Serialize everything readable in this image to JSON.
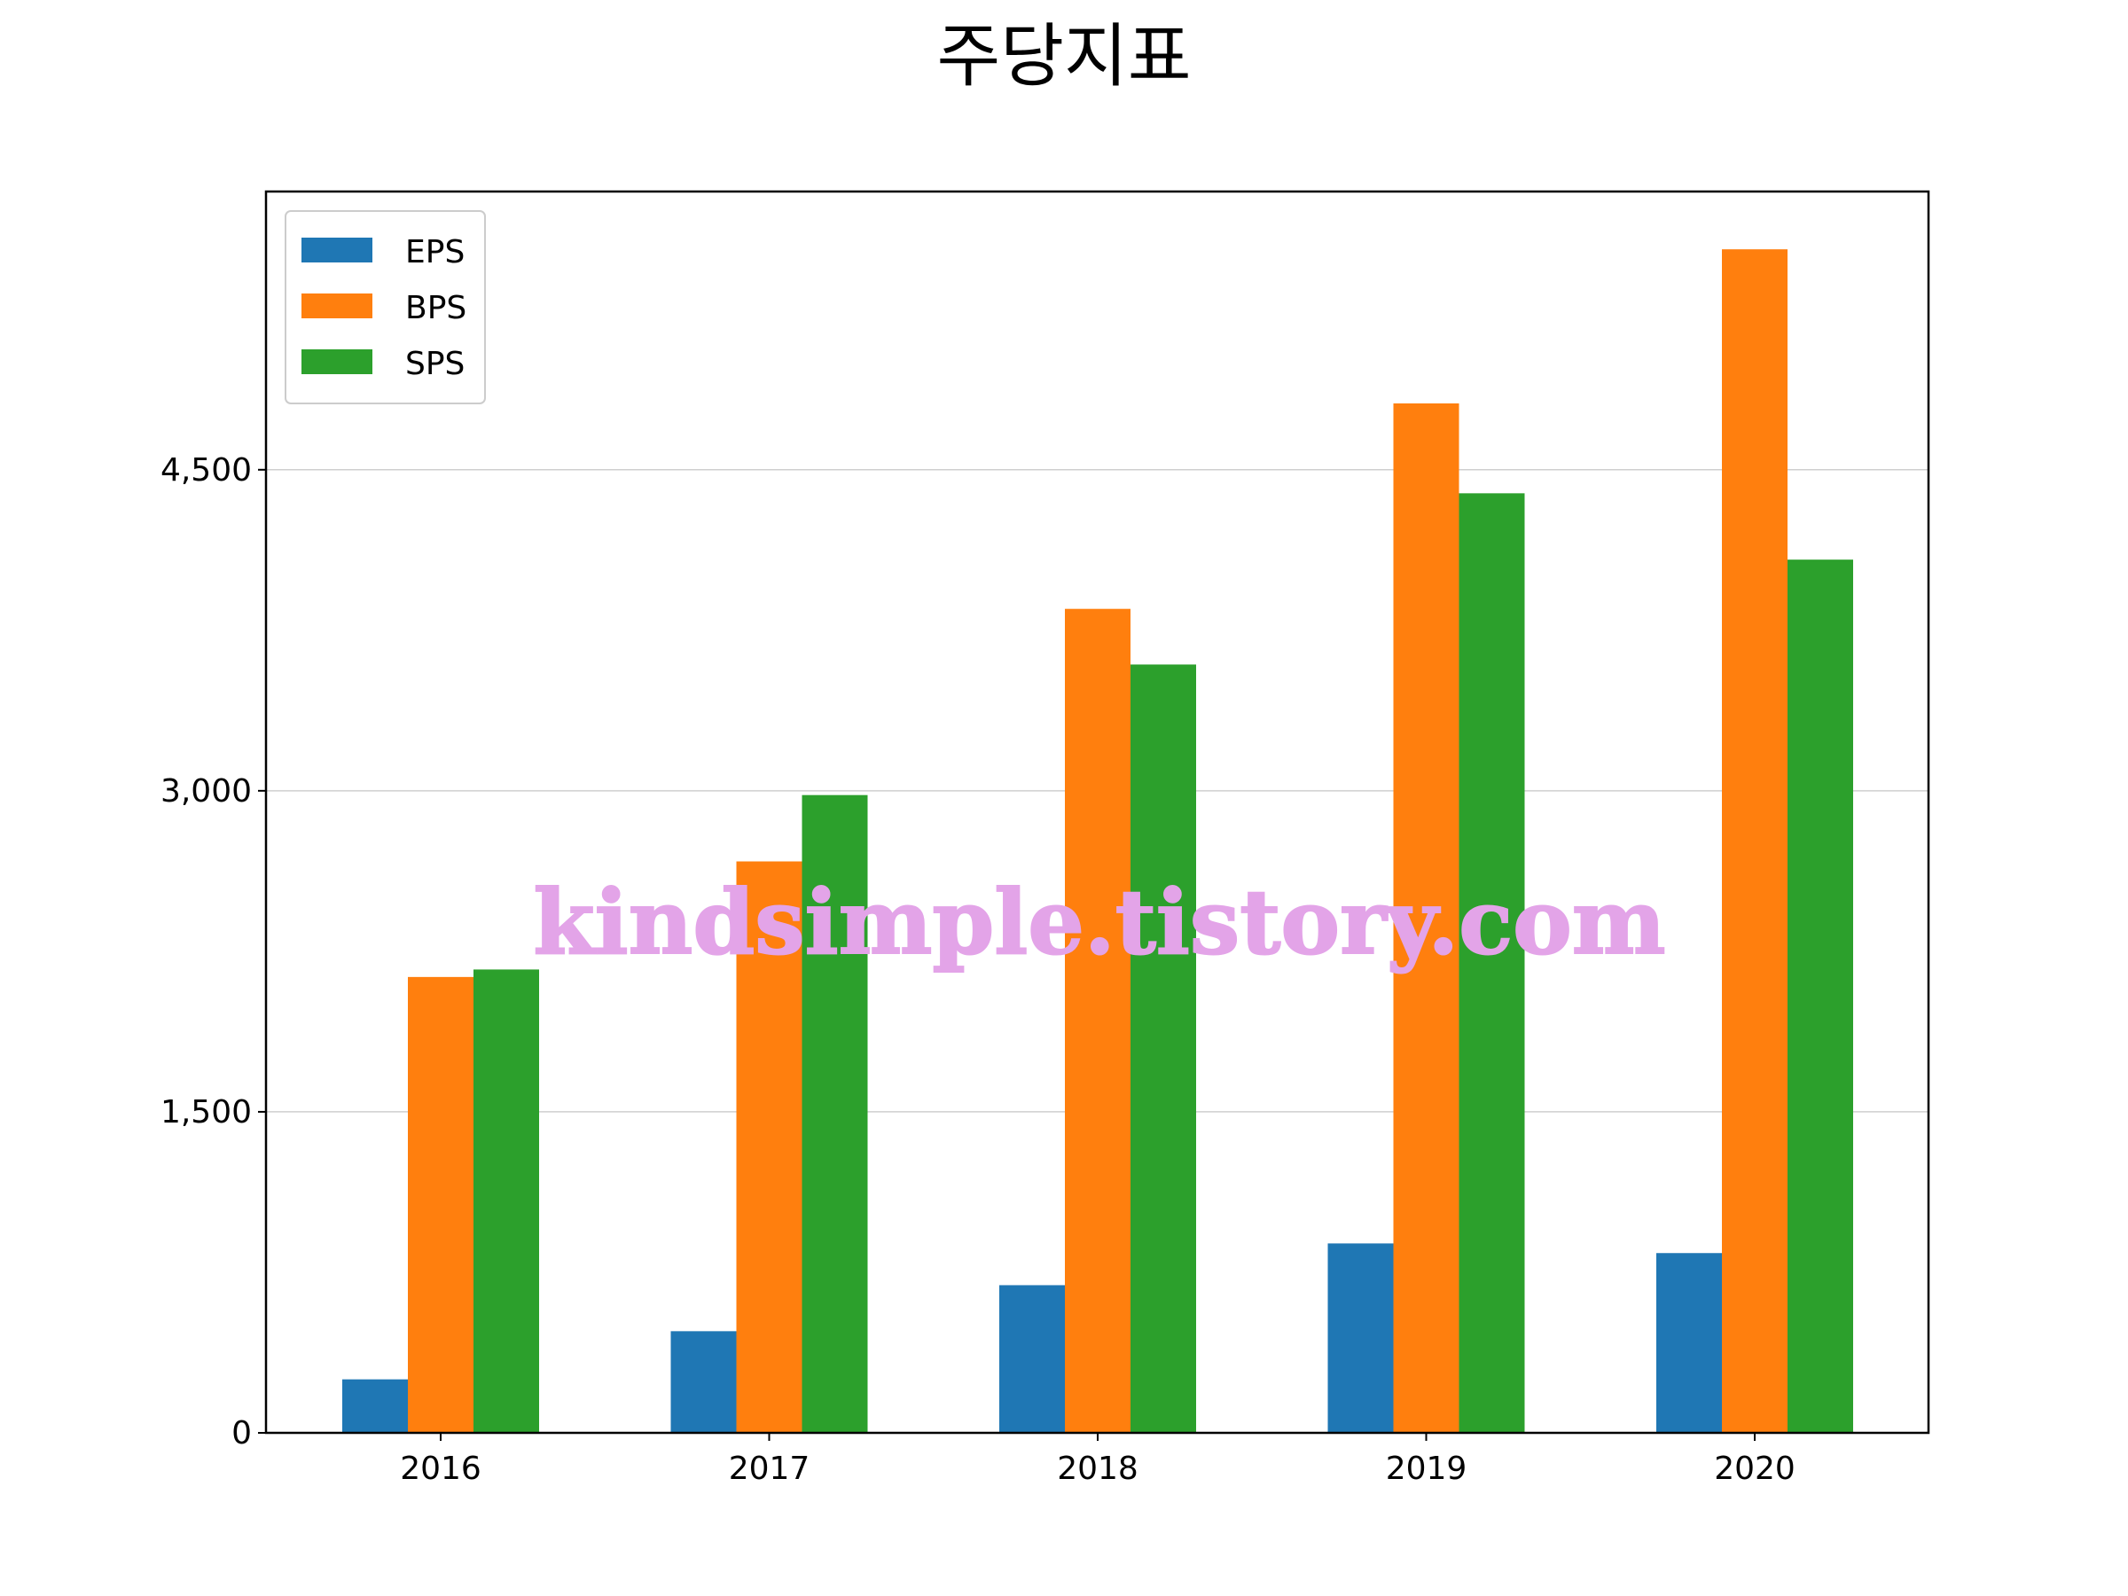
{
  "chart_data": {
    "type": "bar",
    "title": "주당지표",
    "categories": [
      "2016",
      "2017",
      "2018",
      "2019",
      "2020"
    ],
    "series": [
      {
        "name": "EPS",
        "color": "#1f77b4",
        "values": [
          250,
          475,
          690,
          885,
          840
        ]
      },
      {
        "name": "BPS",
        "color": "#ff7f0e",
        "values": [
          2130,
          2670,
          3850,
          4810,
          5530
        ]
      },
      {
        "name": "SPS",
        "color": "#2ca02c",
        "values": [
          2165,
          2980,
          3590,
          4390,
          4080
        ]
      }
    ],
    "yticks": [
      0,
      1500,
      3000,
      4500
    ],
    "ytick_labels": [
      "0",
      "1,500",
      "3,000",
      "4,500"
    ],
    "ylim": [
      0,
      5800
    ],
    "grid": "y",
    "legend_position": "upper-left",
    "xlabel": "",
    "ylabel": ""
  },
  "watermark": "kindsimple.tistory.com"
}
